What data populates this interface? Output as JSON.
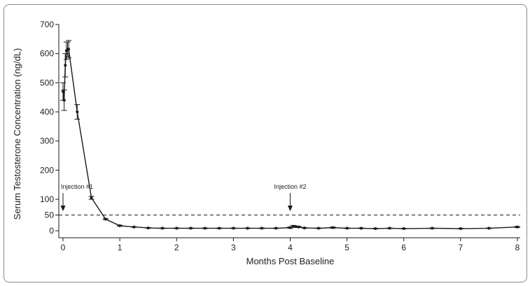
{
  "chart_data": {
    "type": "line",
    "title": "",
    "xlabel": "Months Post Baseline",
    "ylabel": "Serum Testosterone Concentration (ng/dL)",
    "xlim": [
      0,
      8
    ],
    "x_ticks": [
      "0",
      "1",
      "2",
      "3",
      "4",
      "5",
      "6",
      "7",
      "8"
    ],
    "y_ticks": [
      "0",
      "50",
      "100",
      "200",
      "300",
      "400",
      "500",
      "600",
      "700"
    ],
    "y_scale": "broken: 0–100 expanded lower segment, 100–700 upper segment",
    "grid": false,
    "reference_line": {
      "y": 50,
      "style": "dashed"
    },
    "annotations": [
      {
        "text": "Injection #1",
        "x": 0
      },
      {
        "text": "Injection #2",
        "x": 4
      }
    ],
    "series": [
      {
        "color": "#1a1a1a",
        "x": [
          0,
          0.02,
          0.04,
          0.06,
          0.08,
          0.1,
          0.25,
          0.5,
          0.75,
          1,
          1.25,
          1.5,
          1.75,
          2,
          2.25,
          2.5,
          2.75,
          3,
          3.25,
          3.5,
          3.75,
          4,
          4.05,
          4.1,
          4.15,
          4.25,
          4.5,
          4.75,
          5,
          5.25,
          5.5,
          5.75,
          6,
          6.5,
          7,
          7.5,
          8
        ],
        "y": [
          470,
          440,
          560,
          610,
          615,
          615,
          400,
          105,
          37,
          16,
          12,
          9,
          8,
          8,
          8,
          8,
          8,
          8,
          8,
          8,
          8,
          10,
          14,
          13,
          12,
          9,
          8,
          10,
          8,
          8,
          7,
          8,
          7,
          8,
          7,
          8,
          12
        ],
        "err": [
          30,
          35,
          40,
          30,
          25,
          30,
          25,
          5,
          2,
          1.5,
          1,
          1,
          1,
          1,
          1,
          1,
          1,
          1,
          1,
          1,
          1,
          2,
          3,
          2,
          2,
          1,
          1,
          2,
          1,
          1,
          1,
          1,
          1,
          1,
          1,
          1,
          2
        ]
      }
    ]
  }
}
